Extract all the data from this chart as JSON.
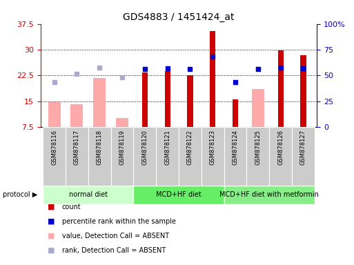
{
  "title": "GDS4883 / 1451424_at",
  "samples": [
    "GSM878116",
    "GSM878117",
    "GSM878118",
    "GSM878119",
    "GSM878120",
    "GSM878121",
    "GSM878122",
    "GSM878123",
    "GSM878124",
    "GSM878125",
    "GSM878126",
    "GSM878127"
  ],
  "count_values": [
    null,
    null,
    null,
    null,
    23.3,
    23.7,
    22.5,
    35.5,
    15.5,
    null,
    29.8,
    28.3
  ],
  "percentile_values": [
    null,
    null,
    null,
    null,
    56.0,
    57.0,
    56.0,
    68.0,
    43.5,
    56.0,
    57.5,
    57.0
  ],
  "value_absent": [
    14.7,
    14.2,
    21.8,
    10.2,
    null,
    null,
    null,
    null,
    null,
    18.5,
    null,
    null
  ],
  "rank_absent": [
    43.5,
    51.5,
    57.5,
    48.5,
    null,
    null,
    null,
    null,
    null,
    56.0,
    null,
    null
  ],
  "protocols": [
    {
      "label": "normal diet",
      "start": 0,
      "end": 3,
      "color": "#ccffcc"
    },
    {
      "label": "MCD+HF diet",
      "start": 4,
      "end": 7,
      "color": "#66ee66"
    },
    {
      "label": "MCD+HF diet with metformin",
      "start": 8,
      "end": 11,
      "color": "#88ee88"
    }
  ],
  "ylim_left": [
    7.5,
    37.5
  ],
  "ylim_right": [
    0,
    100
  ],
  "yticks_left": [
    7.5,
    15.0,
    22.5,
    30.0,
    37.5
  ],
  "yticks_right": [
    0,
    25,
    50,
    75,
    100
  ],
  "ytick_labels_left": [
    "7.5",
    "15",
    "22.5",
    "30",
    "37.5"
  ],
  "ytick_labels_right": [
    "0",
    "25",
    "50",
    "75",
    "100%"
  ],
  "left_color": "#cc0000",
  "right_color": "#0000cc",
  "count_color": "#cc0000",
  "percentile_color": "#0000cc",
  "value_absent_color": "#ffaaaa",
  "rank_absent_color": "#aaaacc",
  "count_bar_width": 0.25,
  "absent_bar_width": 0.55,
  "marker_size": 5,
  "bg_color": "#cccccc",
  "legend_items": [
    {
      "color": "#cc0000",
      "label": "count"
    },
    {
      "color": "#0000cc",
      "label": "percentile rank within the sample"
    },
    {
      "color": "#ffaaaa",
      "label": "value, Detection Call = ABSENT"
    },
    {
      "color": "#aaaacc",
      "label": "rank, Detection Call = ABSENT"
    }
  ]
}
